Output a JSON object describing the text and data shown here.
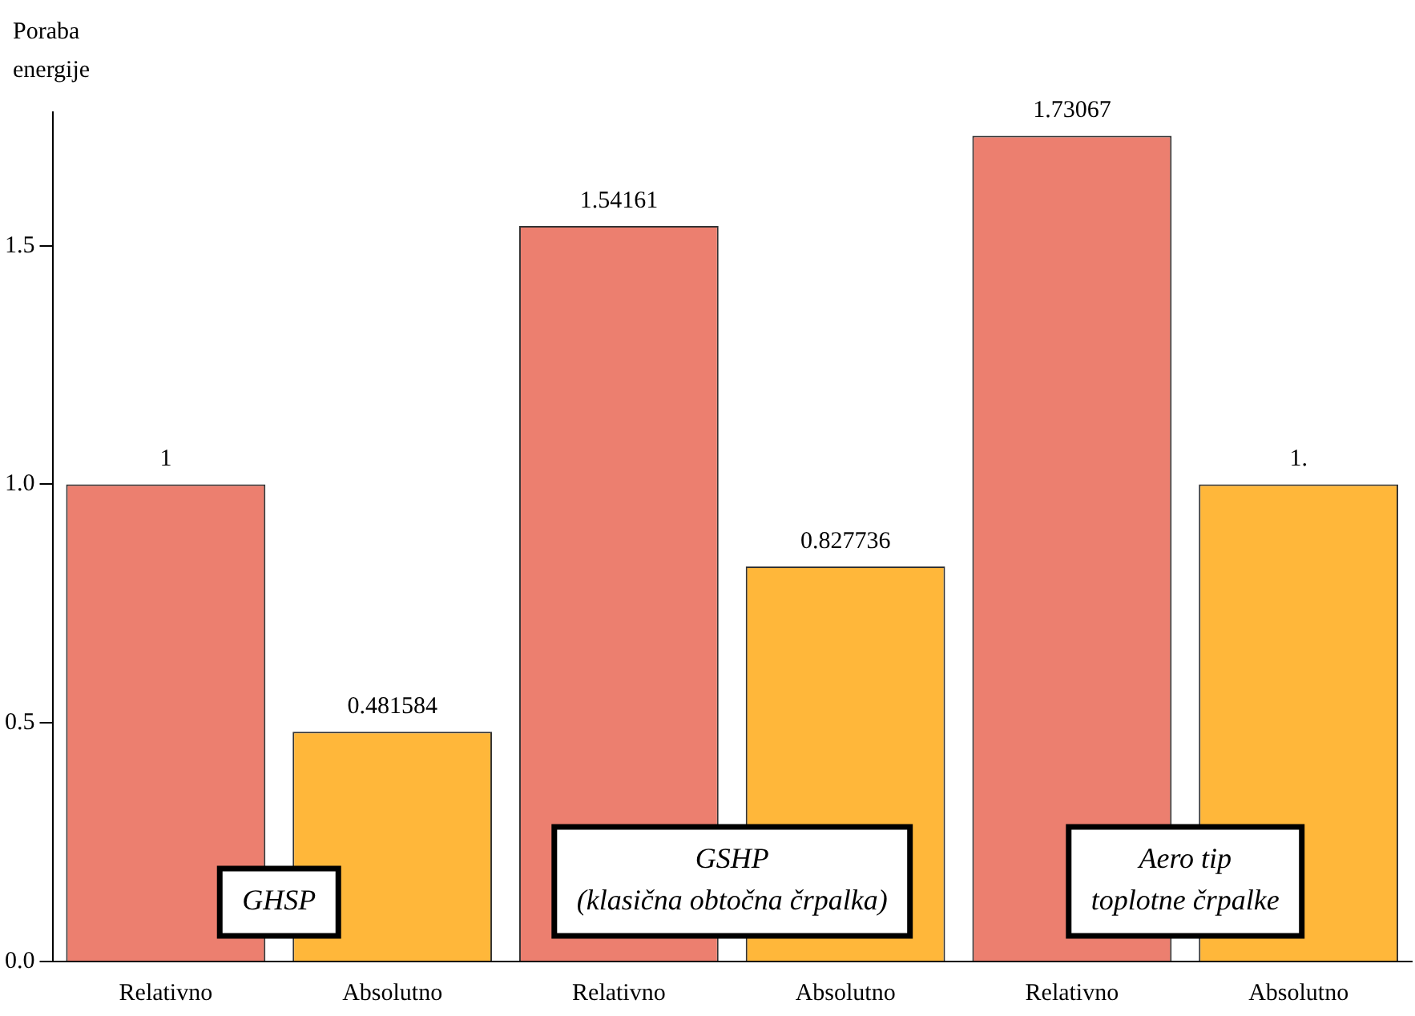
{
  "chart_data": {
    "type": "bar",
    "ylabel": "Poraba energije",
    "categories": [
      "Relativno",
      "Absolutno",
      "Relativno",
      "Absolutno",
      "Relativno",
      "Absolutno"
    ],
    "values": [
      1,
      0.481584,
      1.54161,
      0.827736,
      1.73067,
      1.0
    ],
    "value_labels": [
      "1",
      "0.481584",
      "1.54161",
      "0.827736",
      "1.73067",
      "1."
    ],
    "colors": [
      "#ec7f6f",
      "#ffb73a",
      "#ec7f6f",
      "#ffb73a",
      "#ec7f6f",
      "#ffb73a"
    ],
    "ylim": [
      0,
      1.78
    ],
    "yticks": [
      {
        "value": 0,
        "label": "0.0"
      },
      {
        "value": 0.5,
        "label": "0.5"
      },
      {
        "value": 1,
        "label": "1.0"
      },
      {
        "value": 1.5,
        "label": "1.5"
      }
    ],
    "grid": false,
    "legend": false,
    "annotations": [
      "GHSP",
      "GSHP\n(klasična obtočna črpalka)",
      "Aero tip\ntoplotne črpalke"
    ]
  }
}
